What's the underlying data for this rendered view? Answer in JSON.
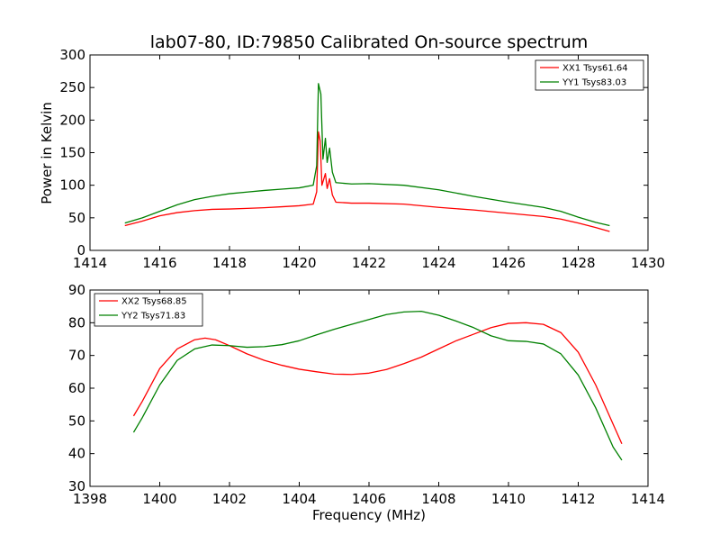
{
  "figure": {
    "title": "lab07-80, ID:79850 Calibrated On-source spectrum",
    "ylabel": "Power in Kelvin",
    "xlabel": "Frequency (MHz)"
  },
  "chart_data": [
    {
      "type": "line",
      "title": "lab07-80, ID:79850 Calibrated On-source spectrum",
      "ylabel": "Power in Kelvin",
      "xlabel": "",
      "xlim": [
        1414,
        1430
      ],
      "ylim": [
        0,
        300
      ],
      "xticks": [
        1414,
        1416,
        1418,
        1420,
        1422,
        1424,
        1426,
        1428,
        1430
      ],
      "yticks": [
        0,
        50,
        100,
        150,
        200,
        250,
        300
      ],
      "grid": false,
      "legend_position": "top-right",
      "series": [
        {
          "name": "XX1 Tsys61.64",
          "color": "#ff0000",
          "points": [
            [
              1415.0,
              38
            ],
            [
              1415.5,
              45
            ],
            [
              1416.0,
              53
            ],
            [
              1416.5,
              58
            ],
            [
              1417.0,
              61
            ],
            [
              1417.5,
              63
            ],
            [
              1418.0,
              63.5
            ],
            [
              1418.5,
              64.5
            ],
            [
              1419.0,
              65.5
            ],
            [
              1419.5,
              67
            ],
            [
              1420.0,
              68.5
            ],
            [
              1420.4,
              71
            ],
            [
              1420.5,
              90
            ],
            [
              1420.55,
              182
            ],
            [
              1420.6,
              168
            ],
            [
              1420.65,
              100
            ],
            [
              1420.75,
              118
            ],
            [
              1420.8,
              95
            ],
            [
              1420.87,
              110
            ],
            [
              1420.95,
              85
            ],
            [
              1421.05,
              74
            ],
            [
              1421.5,
              72.5
            ],
            [
              1422.0,
              72.5
            ],
            [
              1423.0,
              71
            ],
            [
              1424.0,
              66
            ],
            [
              1425.0,
              62
            ],
            [
              1426.0,
              57
            ],
            [
              1427.0,
              52
            ],
            [
              1427.5,
              48
            ],
            [
              1428.0,
              42
            ],
            [
              1428.5,
              35
            ],
            [
              1428.9,
              29
            ]
          ]
        },
        {
          "name": "YY1 Tsys83.03",
          "color": "#008000",
          "points": [
            [
              1415.0,
              42
            ],
            [
              1415.5,
              50
            ],
            [
              1416.0,
              60
            ],
            [
              1416.5,
              70
            ],
            [
              1417.0,
              78
            ],
            [
              1417.5,
              83
            ],
            [
              1418.0,
              87
            ],
            [
              1418.5,
              89.5
            ],
            [
              1419.0,
              92
            ],
            [
              1419.5,
              94
            ],
            [
              1420.0,
              96
            ],
            [
              1420.4,
              100
            ],
            [
              1420.5,
              130
            ],
            [
              1420.55,
              256
            ],
            [
              1420.62,
              240
            ],
            [
              1420.68,
              140
            ],
            [
              1420.75,
              172
            ],
            [
              1420.8,
              135
            ],
            [
              1420.87,
              157
            ],
            [
              1420.95,
              120
            ],
            [
              1421.05,
              104
            ],
            [
              1421.5,
              102
            ],
            [
              1422.0,
              102.5
            ],
            [
              1423.0,
              100
            ],
            [
              1424.0,
              93
            ],
            [
              1425.0,
              83
            ],
            [
              1426.0,
              74
            ],
            [
              1427.0,
              66
            ],
            [
              1427.5,
              60
            ],
            [
              1428.0,
              51
            ],
            [
              1428.5,
              43
            ],
            [
              1428.9,
              38
            ]
          ]
        }
      ]
    },
    {
      "type": "line",
      "title": "",
      "ylabel": "",
      "xlabel": "Frequency (MHz)",
      "xlim": [
        1398,
        1414
      ],
      "ylim": [
        30,
        90
      ],
      "xticks": [
        1398,
        1400,
        1402,
        1404,
        1406,
        1408,
        1410,
        1412,
        1414
      ],
      "yticks": [
        30,
        40,
        50,
        60,
        70,
        80,
        90
      ],
      "grid": false,
      "legend_position": "top-left",
      "series": [
        {
          "name": "XX2 Tsys68.85",
          "color": "#ff0000",
          "points": [
            [
              1399.25,
              51.5
            ],
            [
              1399.5,
              56
            ],
            [
              1400.0,
              66
            ],
            [
              1400.5,
              72
            ],
            [
              1401.0,
              74.8
            ],
            [
              1401.3,
              75.3
            ],
            [
              1401.6,
              74.8
            ],
            [
              1402.0,
              73
            ],
            [
              1402.5,
              70.5
            ],
            [
              1403.0,
              68.5
            ],
            [
              1403.5,
              67
            ],
            [
              1404.0,
              65.8
            ],
            [
              1404.5,
              65
            ],
            [
              1405.0,
              64.3
            ],
            [
              1405.5,
              64.2
            ],
            [
              1406.0,
              64.6
            ],
            [
              1406.5,
              65.7
            ],
            [
              1407.0,
              67.5
            ],
            [
              1407.5,
              69.5
            ],
            [
              1408.0,
              72
            ],
            [
              1408.5,
              74.5
            ],
            [
              1409.0,
              76.5
            ],
            [
              1409.5,
              78.5
            ],
            [
              1410.0,
              79.8
            ],
            [
              1410.5,
              80
            ],
            [
              1411.0,
              79.5
            ],
            [
              1411.5,
              77
            ],
            [
              1412.0,
              71
            ],
            [
              1412.5,
              61
            ],
            [
              1413.0,
              49
            ],
            [
              1413.25,
              43
            ]
          ]
        },
        {
          "name": "YY2 Tsys71.83",
          "color": "#008000",
          "points": [
            [
              1399.25,
              46.5
            ],
            [
              1399.5,
              51
            ],
            [
              1400.0,
              61
            ],
            [
              1400.5,
              68.5
            ],
            [
              1401.0,
              72
            ],
            [
              1401.5,
              73.2
            ],
            [
              1402.0,
              73
            ],
            [
              1402.5,
              72.5
            ],
            [
              1403.0,
              72.7
            ],
            [
              1403.5,
              73.3
            ],
            [
              1404.0,
              74.5
            ],
            [
              1404.5,
              76.3
            ],
            [
              1405.0,
              78
            ],
            [
              1405.5,
              79.5
            ],
            [
              1406.0,
              81
            ],
            [
              1406.5,
              82.5
            ],
            [
              1407.0,
              83.3
            ],
            [
              1407.5,
              83.5
            ],
            [
              1408.0,
              82.3
            ],
            [
              1408.5,
              80.5
            ],
            [
              1409.0,
              78.5
            ],
            [
              1409.5,
              76
            ],
            [
              1410.0,
              74.5
            ],
            [
              1410.5,
              74.3
            ],
            [
              1411.0,
              73.5
            ],
            [
              1411.5,
              70.5
            ],
            [
              1412.0,
              64
            ],
            [
              1412.5,
              54
            ],
            [
              1413.0,
              42
            ],
            [
              1413.25,
              38
            ]
          ]
        }
      ]
    }
  ]
}
